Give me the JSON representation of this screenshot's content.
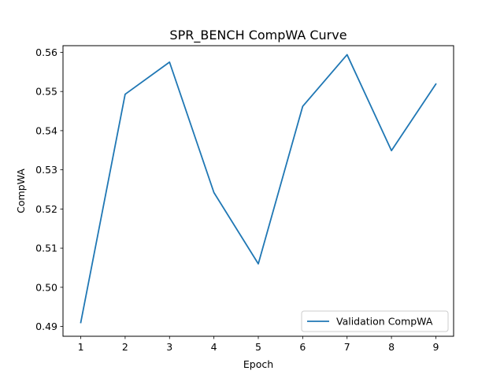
{
  "chart_data": {
    "type": "line",
    "title": "SPR_BENCH CompWA Curve",
    "xlabel": "Epoch",
    "ylabel": "CompWA",
    "x": [
      1,
      2,
      3,
      4,
      5,
      6,
      7,
      8,
      9
    ],
    "series": [
      {
        "name": "Validation CompWA",
        "color": "#1f77b4",
        "values": [
          0.491,
          0.5493,
          0.5575,
          0.5242,
          0.506,
          0.5462,
          0.5594,
          0.5349,
          0.5519
        ]
      }
    ],
    "xlim": [
      0.6,
      9.4
    ],
    "ylim": [
      0.4875,
      0.5617
    ],
    "xticks": [
      "1",
      "2",
      "3",
      "4",
      "5",
      "6",
      "7",
      "8",
      "9"
    ],
    "yticks": [
      "0.49",
      "0.50",
      "0.51",
      "0.52",
      "0.53",
      "0.54",
      "0.55",
      "0.56"
    ],
    "grid": false,
    "legend_position": "lower-right"
  }
}
